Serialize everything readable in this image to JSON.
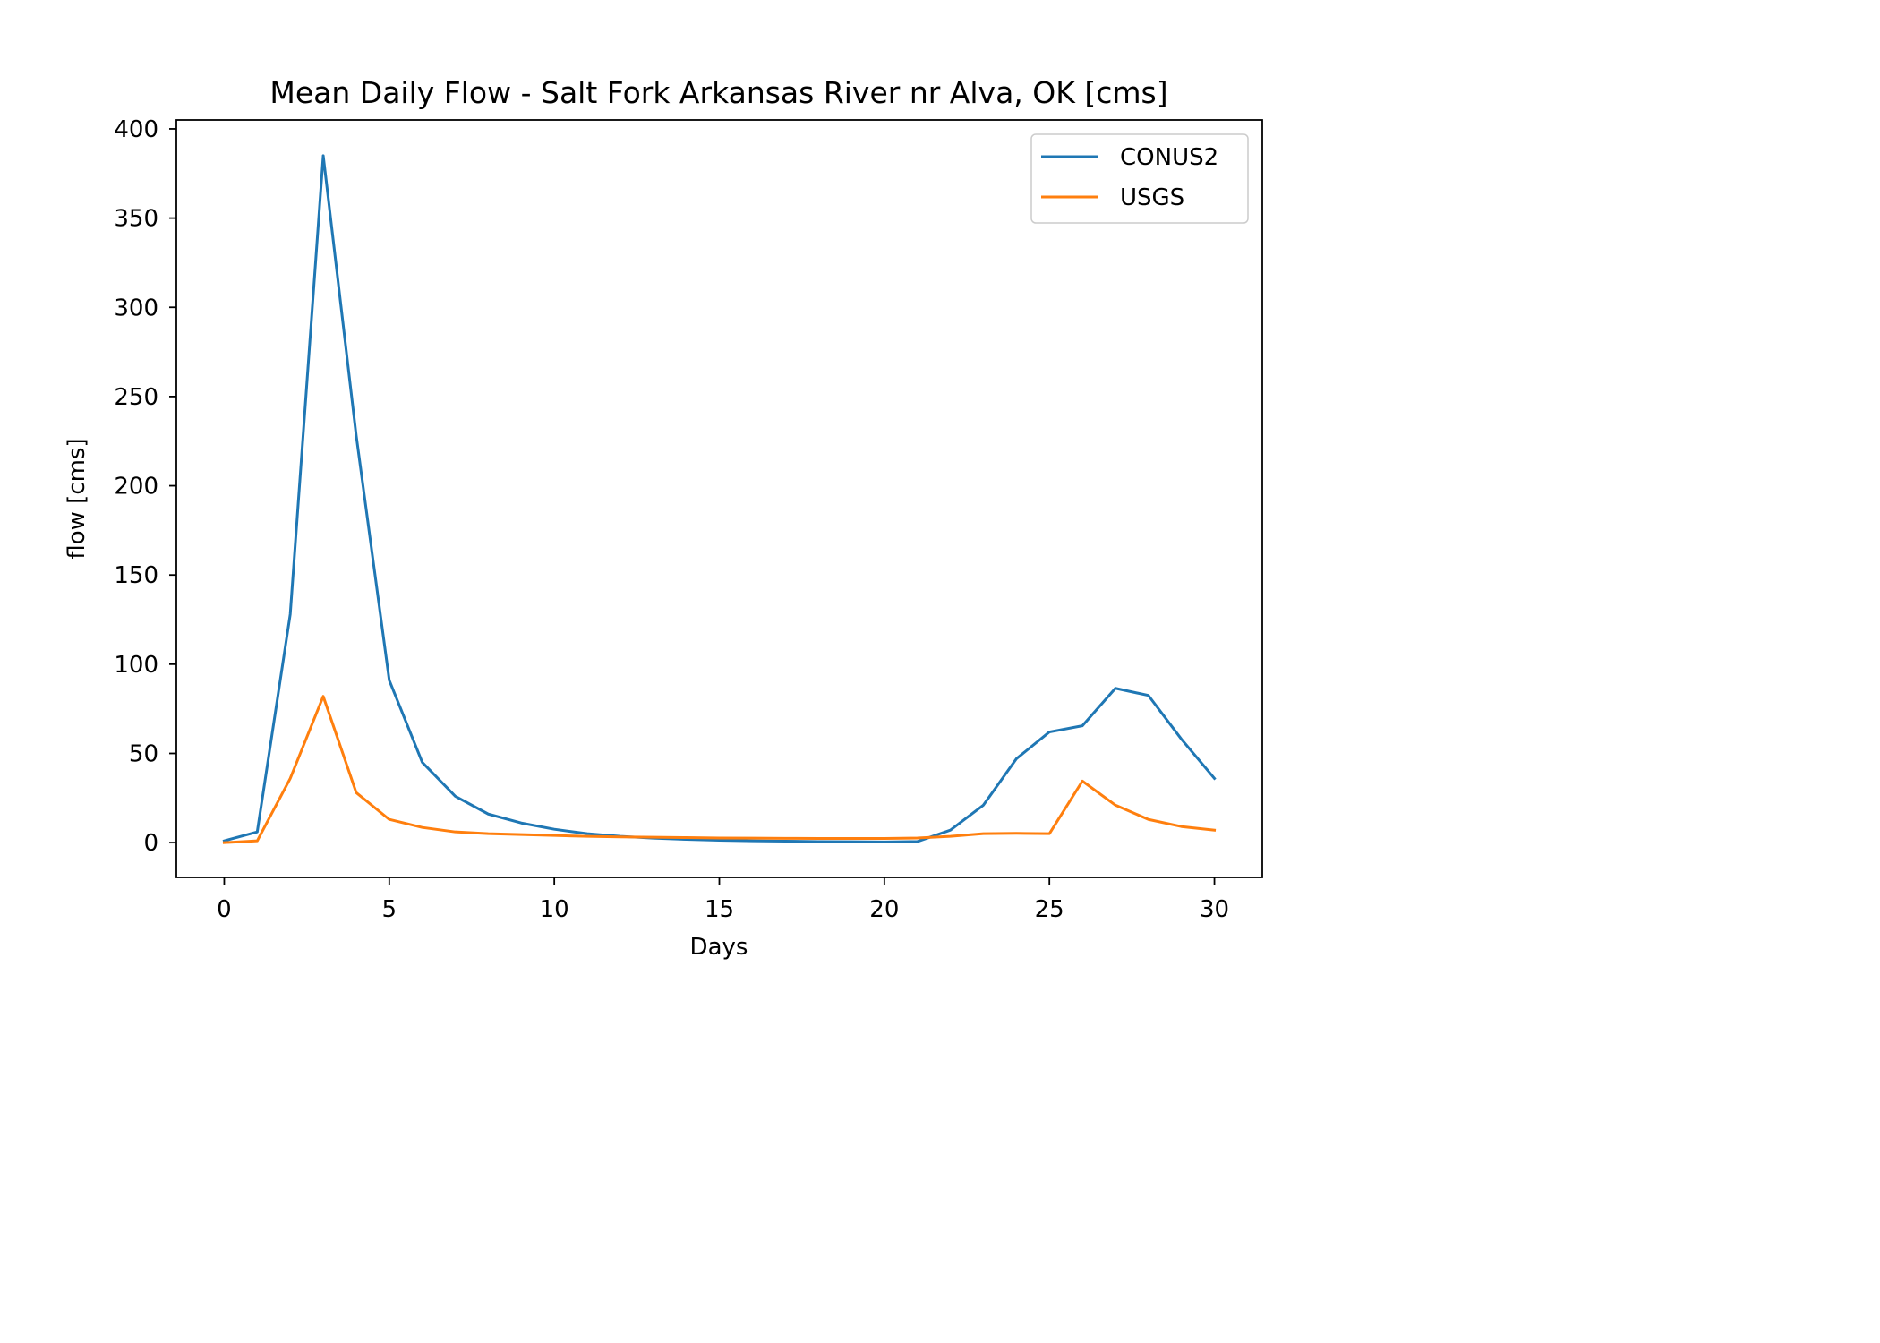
{
  "chart_data": {
    "type": "line",
    "title": "Mean Daily Flow - Salt Fork Arkansas River nr Alva, OK [cms]",
    "xlabel": "Days",
    "ylabel": "flow [cms]",
    "xlim": [
      -1.45,
      31.45
    ],
    "ylim": [
      -19.5,
      405
    ],
    "xticks": [
      0,
      5,
      10,
      15,
      20,
      25,
      30
    ],
    "yticks": [
      0,
      50,
      100,
      150,
      200,
      250,
      300,
      350,
      400
    ],
    "grid": false,
    "legend_position": "upper right",
    "x": [
      0,
      1,
      2,
      3,
      4,
      5,
      6,
      7,
      8,
      9,
      10,
      11,
      12,
      13,
      14,
      15,
      16,
      17,
      18,
      19,
      20,
      21,
      22,
      23,
      24,
      25,
      26,
      27,
      28,
      29,
      30
    ],
    "series": [
      {
        "name": "CONUS2",
        "color": "#1f77b4",
        "values": [
          1,
          6,
          128,
          385,
          228,
          91,
          45,
          26,
          16,
          11,
          7.5,
          5,
          3.5,
          2.5,
          1.8,
          1.3,
          1,
          0.8,
          0.6,
          0.5,
          0.4,
          0.6,
          7,
          21,
          47,
          62,
          65.5,
          86.5,
          82.5,
          58,
          36
        ]
      },
      {
        "name": "USGS",
        "color": "#ff7f0e",
        "values": [
          0,
          1,
          36,
          82,
          28,
          13,
          8.5,
          6,
          5,
          4.5,
          4,
          3.5,
          3.2,
          3,
          2.8,
          2.6,
          2.5,
          2.4,
          2.3,
          2.3,
          2.3,
          2.6,
          3.5,
          5,
          5.2,
          5,
          34.5,
          21,
          13,
          9,
          7
        ]
      }
    ]
  }
}
